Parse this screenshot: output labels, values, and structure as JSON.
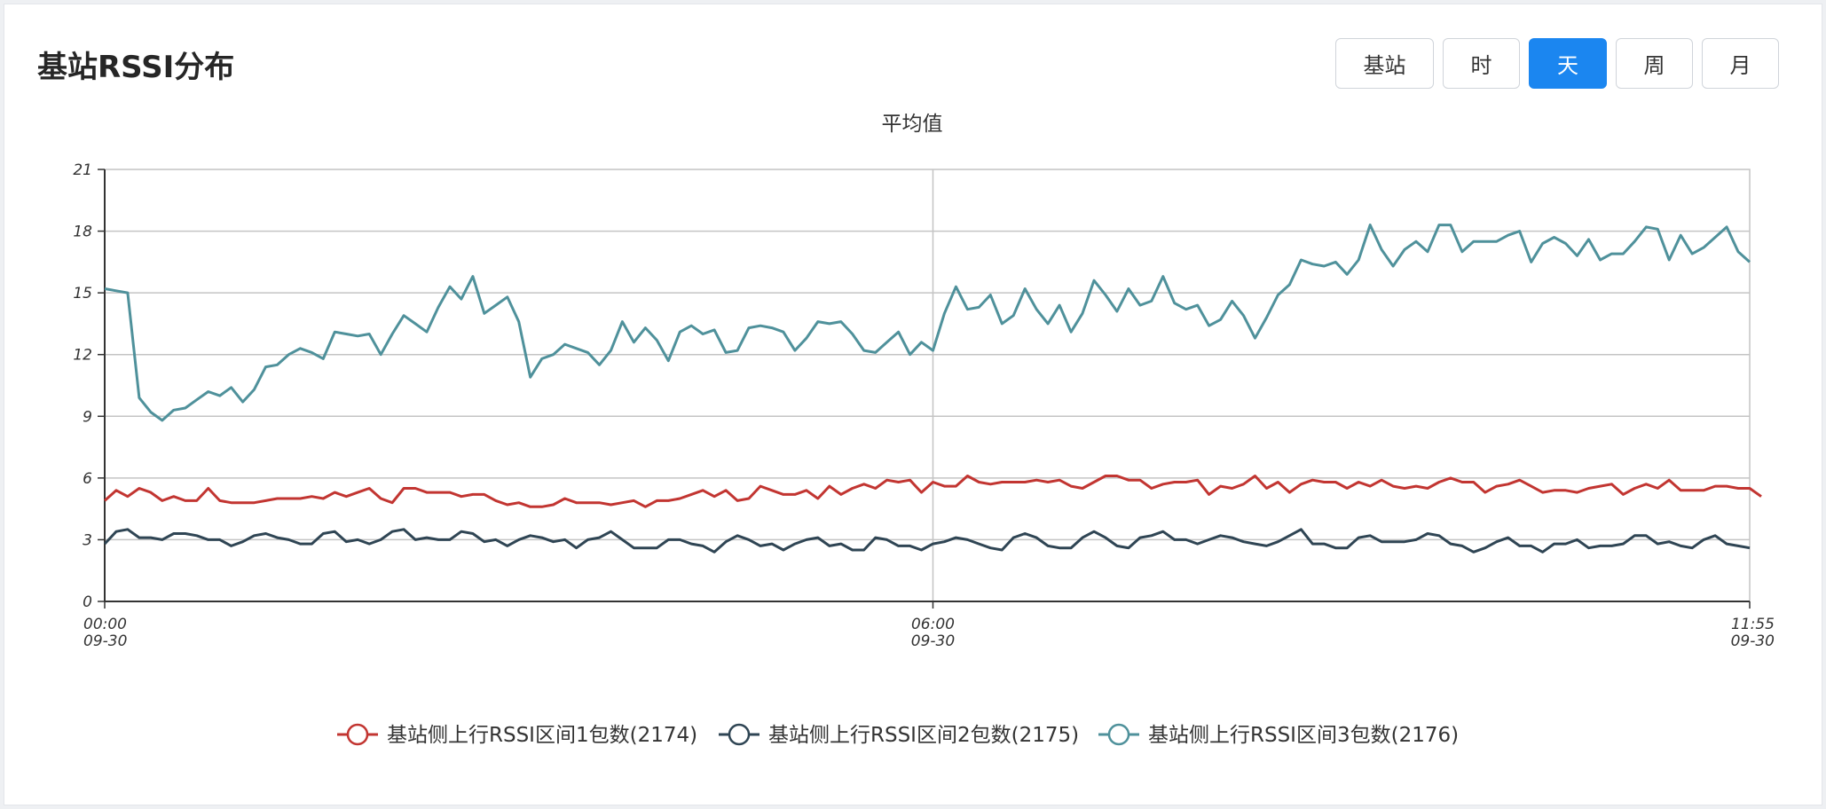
{
  "panel": {
    "title": "基站RSSI分布"
  },
  "toolbar": {
    "buttons": [
      {
        "label": "基站",
        "active": false
      },
      {
        "label": "时",
        "active": false
      },
      {
        "label": "天",
        "active": true
      },
      {
        "label": "周",
        "active": false
      },
      {
        "label": "月",
        "active": false
      }
    ]
  },
  "colors": {
    "accent": "#1b86f0",
    "series1": "#c23531",
    "series2": "#2f4554",
    "series3": "#4f919b",
    "grid": "#c4c4c4"
  },
  "chart_data": {
    "type": "line",
    "title": "平均值",
    "xlabel": "",
    "ylabel": "",
    "ylim": [
      0,
      21
    ],
    "yticks": [
      0,
      3,
      6,
      9,
      12,
      15,
      18,
      21
    ],
    "xrange": [
      "09-30 00:00",
      "09-30 11:55"
    ],
    "xticks": [
      {
        "time": "00:00",
        "date": "09-30",
        "minute": 0
      },
      {
        "time": "06:00",
        "date": "09-30",
        "minute": 360
      },
      {
        "time": "11:55",
        "date": "09-30",
        "minute": 715
      }
    ],
    "x_interval_minutes": 5,
    "legend_position": "bottom-center",
    "grid": true,
    "series": [
      {
        "name": "基站侧上行RSSI区间1包数(2174)",
        "color": "#c23531",
        "values": [
          4.9,
          5.4,
          5.1,
          5.5,
          5.3,
          4.9,
          5.1,
          4.9,
          4.9,
          5.5,
          4.9,
          4.8,
          4.8,
          4.8,
          4.9,
          5.0,
          5.0,
          5.0,
          5.1,
          5.0,
          5.3,
          5.1,
          5.3,
          5.5,
          5.0,
          4.8,
          5.5,
          5.5,
          5.3,
          5.3,
          5.3,
          5.1,
          5.2,
          5.2,
          4.9,
          4.7,
          4.8,
          4.6,
          4.6,
          4.7,
          5.0,
          4.8,
          4.8,
          4.8,
          4.7,
          4.8,
          4.9,
          4.6,
          4.9,
          4.9,
          5.0,
          5.2,
          5.4,
          5.1,
          5.4,
          4.9,
          5.0,
          5.6,
          5.4,
          5.2,
          5.2,
          5.4,
          5.0,
          5.6,
          5.2,
          5.5,
          5.7,
          5.5,
          5.9,
          5.8,
          5.9,
          5.3,
          5.8,
          5.6,
          5.6,
          6.1,
          5.8,
          5.7,
          5.8,
          5.8,
          5.8,
          5.9,
          5.8,
          5.9,
          5.6,
          5.5,
          5.8,
          6.1,
          6.1,
          5.9,
          5.9,
          5.5,
          5.7,
          5.8,
          5.8,
          5.9,
          5.2,
          5.6,
          5.5,
          5.7,
          6.1,
          5.5,
          5.8,
          5.3,
          5.7,
          5.9,
          5.8,
          5.8,
          5.5,
          5.8,
          5.6,
          5.9,
          5.6,
          5.5,
          5.6,
          5.5,
          5.8,
          6.0,
          5.8,
          5.8,
          5.3,
          5.6,
          5.7,
          5.9,
          5.6,
          5.3,
          5.4,
          5.4,
          5.3,
          5.5,
          5.6,
          5.7,
          5.2,
          5.5,
          5.7,
          5.5,
          5.9,
          5.4,
          5.4,
          5.4,
          5.6,
          5.6,
          5.5,
          5.5,
          5.1
        ]
      },
      {
        "name": "基站侧上行RSSI区间2包数(2175)",
        "color": "#2f4554",
        "values": [
          2.8,
          3.4,
          3.5,
          3.1,
          3.1,
          3.0,
          3.3,
          3.3,
          3.2,
          3.0,
          3.0,
          2.7,
          2.9,
          3.2,
          3.3,
          3.1,
          3.0,
          2.8,
          2.8,
          3.3,
          3.4,
          2.9,
          3.0,
          2.8,
          3.0,
          3.4,
          3.5,
          3.0,
          3.1,
          3.0,
          3.0,
          3.4,
          3.3,
          2.9,
          3.0,
          2.7,
          3.0,
          3.2,
          3.1,
          2.9,
          3.0,
          2.6,
          3.0,
          3.1,
          3.4,
          3.0,
          2.6,
          2.6,
          2.6,
          3.0,
          3.0,
          2.8,
          2.7,
          2.4,
          2.9,
          3.2,
          3.0,
          2.7,
          2.8,
          2.5,
          2.8,
          3.0,
          3.1,
          2.7,
          2.8,
          2.5,
          2.5,
          3.1,
          3.0,
          2.7,
          2.7,
          2.5,
          2.8,
          2.9,
          3.1,
          3.0,
          2.8,
          2.6,
          2.5,
          3.1,
          3.3,
          3.1,
          2.7,
          2.6,
          2.6,
          3.1,
          3.4,
          3.1,
          2.7,
          2.6,
          3.1,
          3.2,
          3.4,
          3.0,
          3.0,
          2.8,
          3.0,
          3.2,
          3.1,
          2.9,
          2.8,
          2.7,
          2.9,
          3.2,
          3.5,
          2.8,
          2.8,
          2.6,
          2.6,
          3.1,
          3.2,
          2.9,
          2.9,
          2.9,
          3.0,
          3.3,
          3.2,
          2.8,
          2.7,
          2.4,
          2.6,
          2.9,
          3.1,
          2.7,
          2.7,
          2.4,
          2.8,
          2.8,
          3.0,
          2.6,
          2.7,
          2.7,
          2.8,
          3.2,
          3.2,
          2.8,
          2.9,
          2.7,
          2.6,
          3.0,
          3.2,
          2.8,
          2.7,
          2.6
        ]
      },
      {
        "name": "基站侧上行RSSI区间3包数(2176)",
        "color": "#4f919b",
        "values": [
          15.2,
          15.1,
          15.0,
          9.9,
          9.2,
          8.8,
          9.3,
          9.4,
          9.8,
          10.2,
          10.0,
          10.4,
          9.7,
          10.3,
          11.4,
          11.5,
          12.0,
          12.3,
          12.1,
          11.8,
          13.1,
          13.0,
          12.9,
          13.0,
          12.0,
          13.0,
          13.9,
          13.5,
          13.1,
          14.3,
          15.3,
          14.7,
          15.8,
          14.0,
          14.4,
          14.8,
          13.6,
          10.9,
          11.8,
          12.0,
          12.5,
          12.3,
          12.1,
          11.5,
          12.2,
          13.6,
          12.6,
          13.3,
          12.7,
          11.7,
          13.1,
          13.4,
          13.0,
          13.2,
          12.1,
          12.2,
          13.3,
          13.4,
          13.3,
          13.1,
          12.2,
          12.8,
          13.6,
          13.5,
          13.6,
          13.0,
          12.2,
          12.1,
          12.6,
          13.1,
          12.0,
          12.6,
          12.2,
          14.0,
          15.3,
          14.2,
          14.3,
          14.9,
          13.5,
          13.9,
          15.2,
          14.2,
          13.5,
          14.4,
          13.1,
          14.0,
          15.6,
          14.9,
          14.1,
          15.2,
          14.4,
          14.6,
          15.8,
          14.5,
          14.2,
          14.4,
          13.4,
          13.7,
          14.6,
          13.9,
          12.8,
          13.8,
          14.9,
          15.4,
          16.6,
          16.4,
          16.3,
          16.5,
          15.9,
          16.6,
          18.3,
          17.1,
          16.3,
          17.1,
          17.5,
          17.0,
          18.3,
          18.3,
          17.0,
          17.5,
          17.5,
          17.5,
          17.8,
          18.0,
          16.5,
          17.4,
          17.7,
          17.4,
          16.8,
          17.6,
          16.6,
          16.9,
          16.9,
          17.5,
          18.2,
          18.1,
          16.6,
          17.8,
          16.9,
          17.2,
          17.7,
          18.2,
          17.0,
          16.5
        ]
      }
    ]
  }
}
